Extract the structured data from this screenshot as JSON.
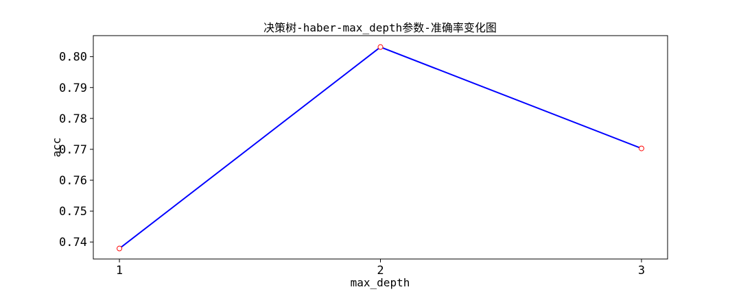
{
  "chart_data": {
    "type": "line",
    "title": "决策树-haber-max_depth参数-准确率变化图",
    "xlabel": "max_depth",
    "ylabel": "acc",
    "x": [
      1,
      2,
      3
    ],
    "x_tick_labels": [
      "1",
      "2",
      "3"
    ],
    "xlim": [
      0.9,
      3.1
    ],
    "ylim": [
      0.7345,
      0.8068
    ],
    "y_ticks": [
      0.74,
      0.75,
      0.76,
      0.77,
      0.78,
      0.79,
      0.8
    ],
    "y_tick_labels": [
      "0.74",
      "0.75",
      "0.76",
      "0.77",
      "0.78",
      "0.79",
      "0.80"
    ],
    "grid": false,
    "series": [
      {
        "name": "acc",
        "values": [
          0.7379,
          0.8031,
          0.7703
        ],
        "line_color": "#0000ff",
        "marker_edge_color": "#ff0000",
        "marker_face_color": "#ffffff"
      }
    ]
  }
}
